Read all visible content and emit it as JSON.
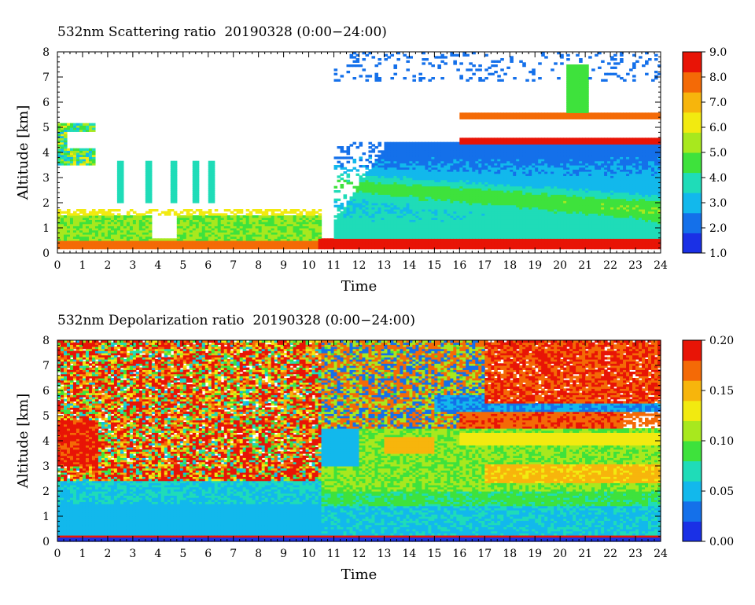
{
  "chart_data": [
    {
      "type": "heatmap",
      "title": "532nm Scattering ratio  20190328 (0:00−24:00)",
      "xlabel": "Time",
      "ylabel": "Altitude [km]",
      "xlim": [
        0,
        24
      ],
      "ylim": [
        0,
        8
      ],
      "x_ticks": [
        "0",
        "1",
        "2",
        "3",
        "4",
        "5",
        "6",
        "7",
        "8",
        "9",
        "10",
        "11",
        "12",
        "13",
        "14",
        "15",
        "16",
        "17",
        "18",
        "19",
        "20",
        "21",
        "22",
        "23",
        "24"
      ],
      "y_ticks": [
        "0",
        "1",
        "2",
        "3",
        "4",
        "5",
        "6",
        "7",
        "8"
      ],
      "colorbar": {
        "range": [
          1.0,
          9.0
        ],
        "ticks": [
          "1.0",
          "2.0",
          "3.0",
          "4.0",
          "5.0",
          "6.0",
          "7.0",
          "8.0",
          "9.0"
        ],
        "colors": [
          "#1a30e6",
          "#1470ea",
          "#12b8ec",
          "#1fdcb8",
          "#3ee23c",
          "#a8e81e",
          "#f2ea10",
          "#f7b50c",
          "#f46a06",
          "#e81406"
        ]
      },
      "features": [
        {
          "time": [
            0,
            10.5
          ],
          "altitude": [
            0.2,
            1.6
          ],
          "approx_value": 5.0,
          "description": "boundary layer aerosol"
        },
        {
          "time": [
            10.5,
            24
          ],
          "altitude": [
            0.2,
            0.6
          ],
          "approx_value": 8.0,
          "description": "dense near-surface layer"
        },
        {
          "time": [
            11,
            24
          ],
          "altitude": [
            0.6,
            4.5
          ],
          "approx_value": 2.5,
          "description": "elevated aerosol layer"
        },
        {
          "time": [
            16,
            24
          ],
          "altitude": [
            4.5,
            5.5
          ],
          "approx_value": 9.0,
          "description": "cloud layer"
        },
        {
          "time": [
            0,
            1.5
          ],
          "altitude": [
            3.5,
            5.2
          ],
          "approx_value": 4.0,
          "description": "morning cloud"
        }
      ]
    },
    {
      "type": "heatmap",
      "title": "532nm Depolarization ratio  20190328 (0:00−24:00)",
      "xlabel": "Time",
      "ylabel": "Altitude [km]",
      "xlim": [
        0,
        24
      ],
      "ylim": [
        0,
        8
      ],
      "x_ticks": [
        "0",
        "1",
        "2",
        "3",
        "4",
        "5",
        "6",
        "7",
        "8",
        "9",
        "10",
        "11",
        "12",
        "13",
        "14",
        "15",
        "16",
        "17",
        "18",
        "19",
        "20",
        "21",
        "22",
        "23",
        "24"
      ],
      "y_ticks": [
        "0",
        "1",
        "2",
        "3",
        "4",
        "5",
        "6",
        "7",
        "8"
      ],
      "colorbar": {
        "range": [
          0.0,
          0.2
        ],
        "ticks": [
          "0.00",
          "0.05",
          "0.10",
          "0.15",
          "0.20"
        ],
        "colors": [
          "#1a30e6",
          "#1470ea",
          "#12b8ec",
          "#1fdcb8",
          "#3ee23c",
          "#a8e81e",
          "#f2ea10",
          "#f7b50c",
          "#f46a06",
          "#e81406"
        ]
      },
      "features": [
        {
          "time": [
            0,
            10.5
          ],
          "altitude": [
            2.5,
            8.0
          ],
          "approx_value": 0.2,
          "description": "noisy high depolarization"
        },
        {
          "time": [
            0,
            24
          ],
          "altitude": [
            0.2,
            1.5
          ],
          "approx_value": 0.04,
          "description": "boundary layer"
        },
        {
          "time": [
            11,
            24
          ],
          "altitude": [
            2.0,
            4.5
          ],
          "approx_value": 0.1,
          "description": "dust layer"
        },
        {
          "time": [
            18,
            24
          ],
          "altitude": [
            2.2,
            3.0
          ],
          "approx_value": 0.15,
          "description": "dust core"
        },
        {
          "time": [
            16,
            24
          ],
          "altitude": [
            4.5,
            6.5
          ],
          "approx_value": 0.2,
          "description": "ice cloud"
        }
      ]
    }
  ]
}
